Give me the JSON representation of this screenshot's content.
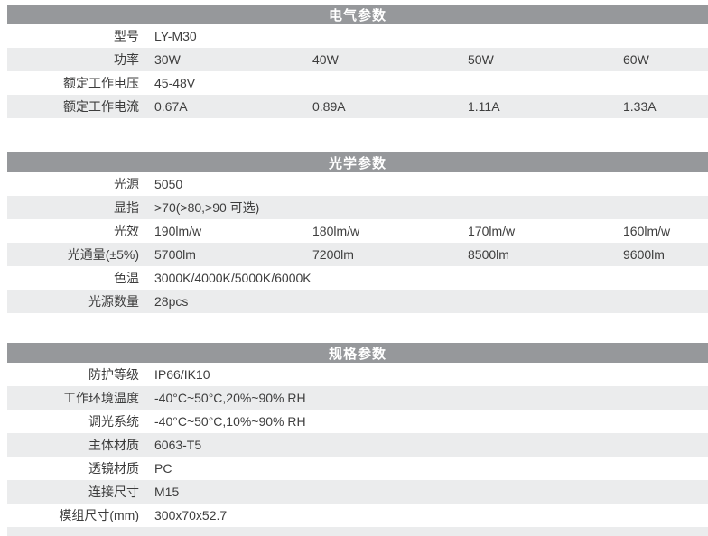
{
  "colors": {
    "header_bg": "#96989b",
    "header_text": "#ffffff",
    "row_alt_bg": "#ebeced",
    "text": "#3d3d3d",
    "page_bg": "#ffffff"
  },
  "sections": [
    {
      "title": "电气参数",
      "rows": [
        {
          "label": "型号",
          "values": [
            "LY-M30"
          ]
        },
        {
          "label": "功率",
          "values": [
            "30W",
            "40W",
            "50W",
            "60W"
          ]
        },
        {
          "label": "额定工作电压",
          "values": [
            "45-48V"
          ]
        },
        {
          "label": "额定工作电流",
          "values": [
            "0.67A",
            "0.89A",
            "1.11A",
            "1.33A"
          ]
        }
      ]
    },
    {
      "title": "光学参数",
      "rows": [
        {
          "label": "光源",
          "values": [
            "5050"
          ]
        },
        {
          "label": "显指",
          "values": [
            ">70(>80,>90 可选)"
          ]
        },
        {
          "label": "光效",
          "values": [
            "190lm/w",
            "180lm/w",
            "170lm/w",
            "160lm/w"
          ]
        },
        {
          "label": "光通量(±5%)",
          "values": [
            "5700lm",
            "7200lm",
            "8500lm",
            "9600lm"
          ]
        },
        {
          "label": "色温",
          "values": [
            "3000K/4000K/5000K/6000K"
          ]
        },
        {
          "label": "光源数量",
          "values": [
            "28pcs"
          ]
        }
      ]
    },
    {
      "title": "规格参数",
      "rows": [
        {
          "label": "防护等级",
          "values": [
            "IP66/IK10"
          ]
        },
        {
          "label": "工作环境温度",
          "values": [
            "-40°C~50°C,20%~90% RH"
          ]
        },
        {
          "label": "调光系统",
          "values": [
            "-40°C~50°C,10%~90% RH"
          ]
        },
        {
          "label": "主体材质",
          "values": [
            "6063-T5"
          ]
        },
        {
          "label": "透镜材质",
          "values": [
            "PC"
          ]
        },
        {
          "label": "连接尺寸",
          "values": [
            "M15"
          ]
        },
        {
          "label": "模组尺寸(mm)",
          "values": [
            "300x70x52.7"
          ]
        }
      ]
    }
  ]
}
